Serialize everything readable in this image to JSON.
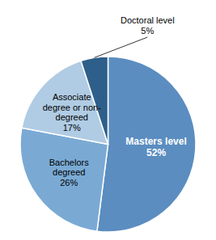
{
  "chart_data": {
    "type": "pie",
    "categories": [
      "Masters level",
      "Bachelors\ndegreed",
      "Associate\ndegree or non-\ndegreed",
      "Doctoral level"
    ],
    "values": [
      52,
      26,
      17,
      5
    ],
    "value_labels": [
      "52%",
      "26%",
      "17%",
      "5%"
    ],
    "colors": [
      "#5b8dc0",
      "#7aaad4",
      "#b0cce4",
      "#2e5f8a"
    ],
    "data_labels": true
  }
}
